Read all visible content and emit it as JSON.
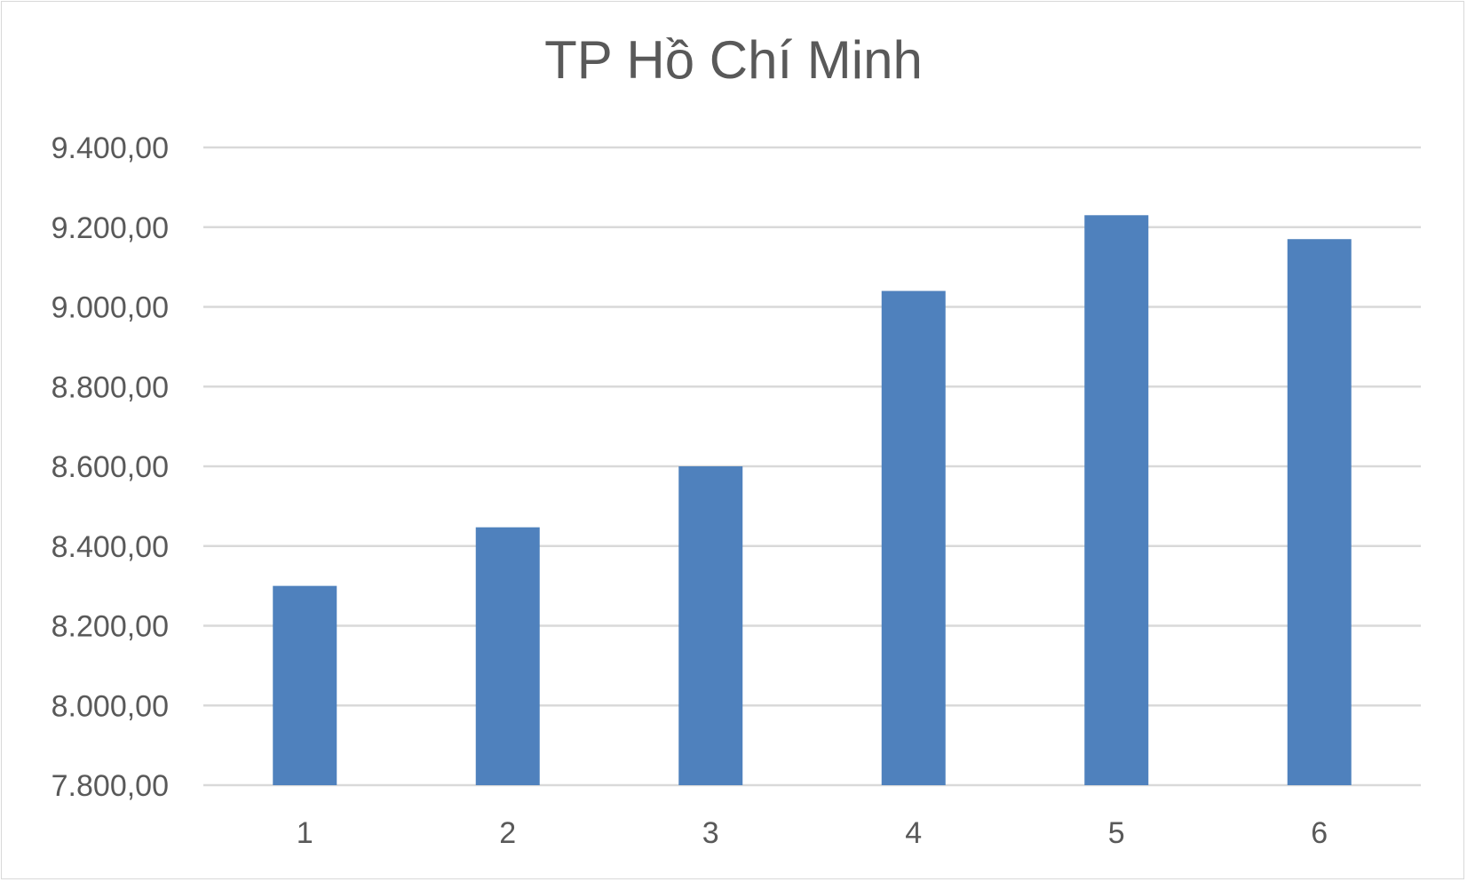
{
  "chart_data": {
    "type": "bar",
    "title": "TP Hồ Chí Minh",
    "categories": [
      "1",
      "2",
      "3",
      "4",
      "5",
      "6"
    ],
    "values": [
      8300,
      8447,
      8600,
      9040,
      9230,
      9170
    ],
    "ylim": [
      7800,
      9400
    ],
    "yticks": [
      7800,
      8000,
      8200,
      8400,
      8600,
      8800,
      9000,
      9200,
      9400
    ],
    "ytick_labels": [
      "7.800,00",
      "8.000,00",
      "8.200,00",
      "8.400,00",
      "8.600,00",
      "8.800,00",
      "9.000,00",
      "9.200,00",
      "9.400,00"
    ],
    "xlabel": "",
    "ylabel": "",
    "grid": true,
    "legend": "none",
    "bar_color": "#4f81bd",
    "grid_color": "#d9d9d9"
  }
}
